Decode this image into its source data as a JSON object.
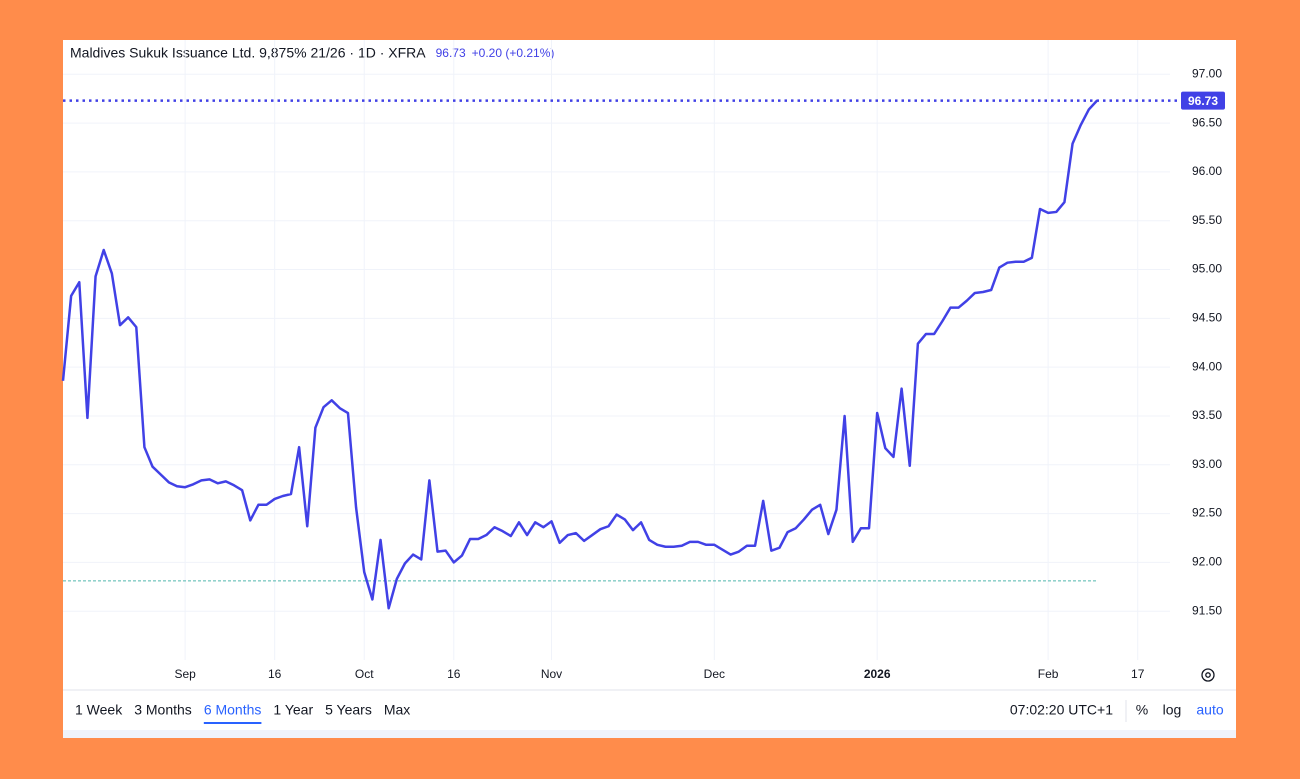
{
  "chart_data": {
    "type": "line",
    "title": "Maldives Sukuk Issuance Ltd. 9,875% 21/26 · 1D · XFRA",
    "last_price": 96.73,
    "change": "+0.20 (+0.21%)",
    "baseline": 91.81,
    "series": [
      {
        "name": "Maldives Sukuk Issuance Ltd. 9,875% 21/26",
        "color": "#4141e6",
        "values": [
          93.86,
          94.73,
          94.87,
          93.48,
          94.93,
          95.2,
          94.96,
          94.43,
          94.51,
          94.41,
          93.18,
          92.98,
          92.9,
          92.82,
          92.78,
          92.77,
          92.8,
          92.84,
          92.85,
          92.81,
          92.83,
          92.79,
          92.74,
          92.43,
          92.59,
          92.59,
          92.65,
          92.68,
          92.7,
          93.18,
          92.37,
          93.38,
          93.59,
          93.66,
          93.58,
          93.53,
          92.56,
          91.9,
          91.62,
          92.23,
          91.53,
          91.83,
          91.99,
          92.08,
          92.03,
          92.84,
          92.11,
          92.12,
          92.0,
          92.07,
          92.24,
          92.24,
          92.28,
          92.36,
          92.32,
          92.27,
          92.41,
          92.28,
          92.41,
          92.36,
          92.42,
          92.2,
          92.28,
          92.3,
          92.22,
          92.28,
          92.34,
          92.37,
          92.49,
          92.44,
          92.33,
          92.41,
          92.23,
          92.18,
          92.16,
          92.16,
          92.17,
          92.21,
          92.21,
          92.18,
          92.18,
          92.13,
          92.08,
          92.11,
          92.17,
          92.17,
          92.63,
          92.12,
          92.15,
          92.31,
          92.35,
          92.44,
          92.54,
          92.59,
          92.29,
          92.54,
          93.5,
          92.21,
          92.35,
          92.35,
          93.53,
          93.17,
          93.08,
          93.78,
          92.99,
          94.24,
          94.34,
          94.34,
          94.47,
          94.61,
          94.61,
          94.68,
          94.76,
          94.77,
          94.79,
          95.02,
          95.07,
          95.08,
          95.08,
          95.12,
          95.62,
          95.58,
          95.59,
          95.69,
          96.29,
          96.48,
          96.64,
          96.73,
          null,
          null,
          null,
          null,
          null,
          null,
          null,
          null,
          null
        ]
      }
    ],
    "categories": [
      null,
      null,
      null,
      null,
      null,
      null,
      null,
      null,
      null,
      null,
      null,
      null,
      null,
      null,
      null,
      "Sep",
      null,
      null,
      null,
      null,
      null,
      null,
      null,
      null,
      null,
      null,
      "16",
      null,
      null,
      null,
      null,
      null,
      null,
      null,
      null,
      null,
      null,
      "Oct",
      null,
      null,
      null,
      null,
      null,
      null,
      null,
      null,
      null,
      null,
      "16",
      null,
      null,
      null,
      null,
      null,
      null,
      null,
      null,
      null,
      null,
      null,
      "Nov",
      null,
      null,
      null,
      null,
      null,
      null,
      null,
      null,
      null,
      null,
      null,
      null,
      null,
      null,
      null,
      null,
      null,
      null,
      null,
      "Dec",
      null,
      null,
      null,
      null,
      null,
      null,
      null,
      null,
      null,
      null,
      null,
      null,
      null,
      null,
      null,
      null,
      null,
      null,
      null,
      "2026",
      null,
      null,
      null,
      null,
      null,
      null,
      null,
      null,
      null,
      null,
      null,
      null,
      null,
      null,
      null,
      null,
      null,
      null,
      null,
      null,
      "Feb",
      null,
      null,
      null,
      null,
      null,
      null,
      null,
      null,
      null,
      null,
      "17",
      null,
      null,
      null,
      null
    ],
    "ylim": [
      91.0,
      97.3
    ],
    "yticks": [
      {
        "value": 91.5,
        "label": "91.50"
      },
      {
        "value": 92,
        "label": "92.00"
      },
      {
        "value": 92.5,
        "label": "92.50"
      },
      {
        "value": 93,
        "label": "93.00"
      },
      {
        "value": 93.5,
        "label": "93.50"
      },
      {
        "value": 94,
        "label": "94.00"
      },
      {
        "value": 94.5,
        "label": "94.50"
      },
      {
        "value": 95,
        "label": "95.00"
      },
      {
        "value": 95.5,
        "label": "95.50"
      },
      {
        "value": 96,
        "label": "96.00"
      },
      {
        "value": 96.5,
        "label": "96.50"
      },
      {
        "value": 97,
        "label": "97.00"
      }
    ],
    "grid": true
  },
  "toolbar": {
    "ranges": [
      "1 Week",
      "3 Months",
      "6 Months",
      "1 Year",
      "5 Years",
      "Max"
    ],
    "active": "6 Months",
    "time": "07:02:20 UTC+1",
    "options": [
      "%",
      "log",
      "auto"
    ],
    "active_option": "auto"
  }
}
